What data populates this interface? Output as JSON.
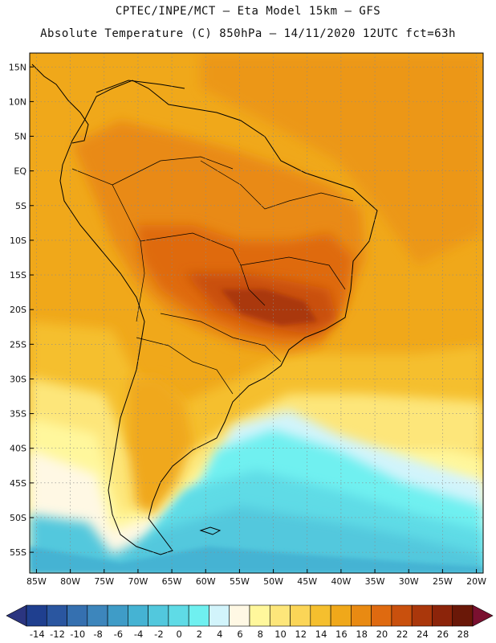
{
  "header": {
    "title_line1": "CPTEC/INPE/MCT –  Eta Model 15km – GFS",
    "title_line2": "Absolute Temperature (C) 850hPa – 14/11/2020 12UTC fct=63h"
  },
  "map": {
    "lon_range": [
      -86,
      -19
    ],
    "lat_range": [
      -58,
      17
    ],
    "lat_ticks": [
      "15N",
      "10N",
      "5N",
      "EQ",
      "5S",
      "10S",
      "15S",
      "20S",
      "25S",
      "30S",
      "35S",
      "40S",
      "45S",
      "50S",
      "55S"
    ],
    "lat_tick_values": [
      15,
      10,
      5,
      0,
      -5,
      -10,
      -15,
      -20,
      -25,
      -30,
      -35,
      -40,
      -45,
      -50,
      -55
    ],
    "lon_ticks": [
      "85W",
      "80W",
      "75W",
      "70W",
      "65W",
      "60W",
      "55W",
      "50W",
      "45W",
      "40W",
      "35W",
      "30W",
      "25W",
      "20W"
    ],
    "lon_tick_values": [
      -85,
      -80,
      -75,
      -70,
      -65,
      -60,
      -55,
      -50,
      -45,
      -40,
      -35,
      -30,
      -25,
      -20
    ]
  },
  "colorbar": {
    "labels": [
      "-14",
      "-12",
      "-10",
      "-8",
      "-6",
      "-4",
      "-2",
      "0",
      "2",
      "4",
      "6",
      "8",
      "10",
      "12",
      "14",
      "16",
      "18",
      "20",
      "22",
      "24",
      "26",
      "28"
    ],
    "colors": [
      "#1f3f8f",
      "#2a56a0",
      "#3570b0",
      "#3d86bc",
      "#3f9cc7",
      "#45b3d3",
      "#52c8dd",
      "#5fdbe6",
      "#6ff0f0",
      "#d2f4fb",
      "#fff8e4",
      "#fff79c",
      "#fde67a",
      "#fbd557",
      "#f5bf2e",
      "#f0a81a",
      "#e98a12",
      "#df6a10",
      "#c9500d",
      "#aa370b",
      "#8c240a",
      "#6a1808"
    ],
    "under_color": "#2b3580",
    "over_color": "#7a1030"
  }
}
